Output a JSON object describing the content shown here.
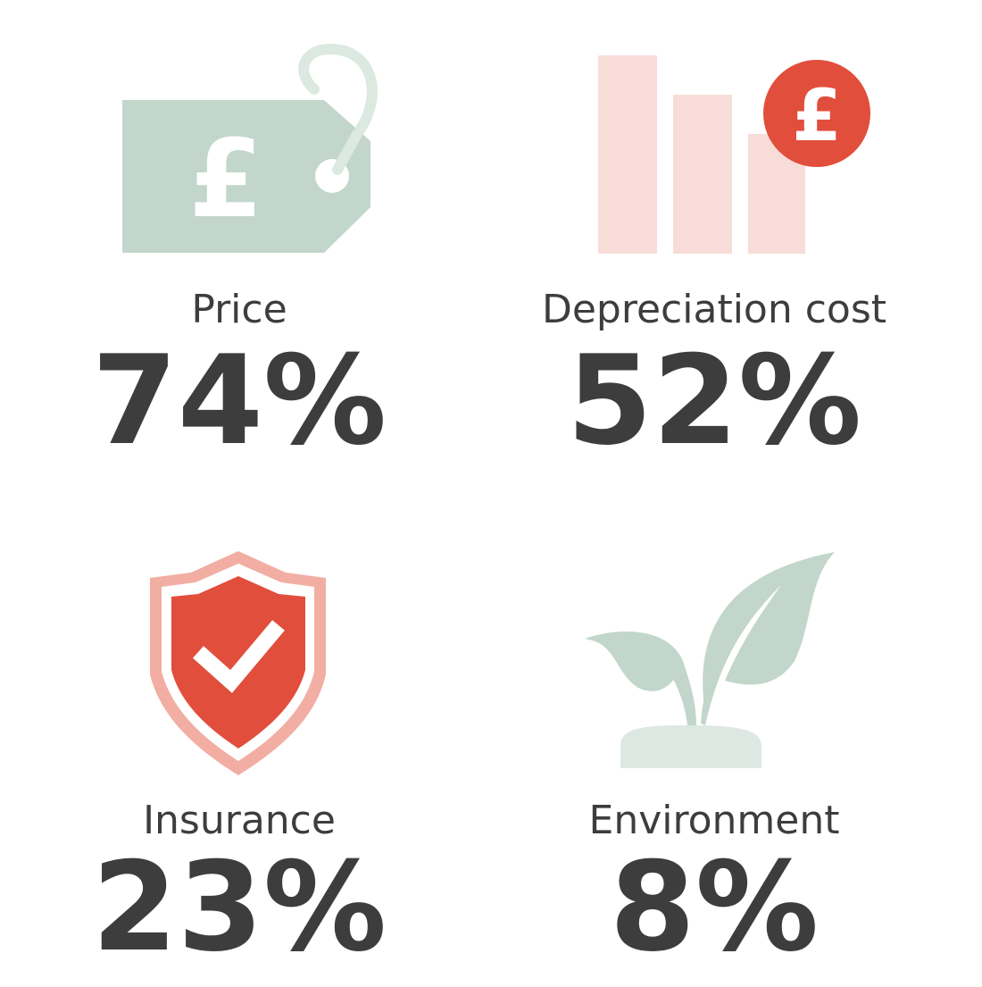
{
  "items": [
    {
      "label": "Price",
      "value": "74%",
      "icon_symbol": "£"
    },
    {
      "label": "Depreciation cost",
      "value": "52%",
      "icon_symbol": "£"
    },
    {
      "label": "Insurance",
      "value": "23%"
    },
    {
      "label": "Environment",
      "value": "8%"
    }
  ]
}
